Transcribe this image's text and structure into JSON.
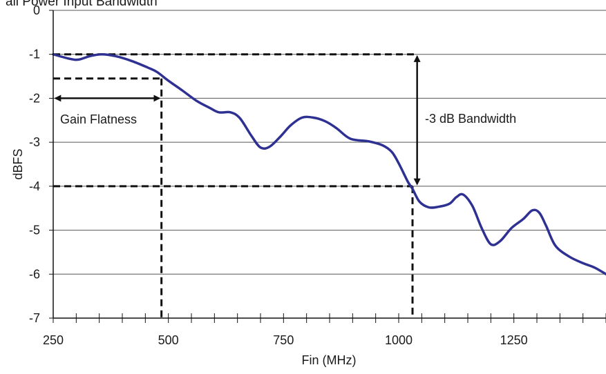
{
  "chart_data": {
    "type": "line",
    "title": "all Power Input Bandwidth",
    "xlabel": "Fin (MHz)",
    "ylabel": "dBFS",
    "xlim": [
      250,
      1450
    ],
    "ylim": [
      -7,
      0
    ],
    "x_ticks": [
      250,
      500,
      750,
      1000,
      1250
    ],
    "y_ticks": [
      0,
      -1,
      -2,
      -3,
      -4,
      -5,
      -6,
      -7
    ],
    "grid": "horizontal",
    "legend": "none",
    "series": [
      {
        "color": "#2e3192",
        "points": [
          [
            250,
            -1.0
          ],
          [
            285,
            -1.1
          ],
          [
            305,
            -1.12
          ],
          [
            330,
            -1.04
          ],
          [
            355,
            -1.0
          ],
          [
            385,
            -1.04
          ],
          [
            420,
            -1.15
          ],
          [
            455,
            -1.3
          ],
          [
            475,
            -1.4
          ],
          [
            500,
            -1.6
          ],
          [
            530,
            -1.82
          ],
          [
            560,
            -2.05
          ],
          [
            590,
            -2.22
          ],
          [
            610,
            -2.32
          ],
          [
            635,
            -2.32
          ],
          [
            655,
            -2.45
          ],
          [
            680,
            -2.85
          ],
          [
            700,
            -3.12
          ],
          [
            720,
            -3.1
          ],
          [
            745,
            -2.85
          ],
          [
            765,
            -2.62
          ],
          [
            790,
            -2.44
          ],
          [
            815,
            -2.44
          ],
          [
            840,
            -2.52
          ],
          [
            865,
            -2.68
          ],
          [
            895,
            -2.92
          ],
          [
            935,
            -2.98
          ],
          [
            965,
            -3.07
          ],
          [
            985,
            -3.22
          ],
          [
            1000,
            -3.48
          ],
          [
            1020,
            -3.9
          ],
          [
            1030,
            -4.06
          ],
          [
            1045,
            -4.35
          ],
          [
            1065,
            -4.48
          ],
          [
            1085,
            -4.47
          ],
          [
            1110,
            -4.4
          ],
          [
            1125,
            -4.25
          ],
          [
            1140,
            -4.19
          ],
          [
            1160,
            -4.45
          ],
          [
            1180,
            -4.95
          ],
          [
            1200,
            -5.32
          ],
          [
            1220,
            -5.25
          ],
          [
            1245,
            -4.95
          ],
          [
            1270,
            -4.75
          ],
          [
            1290,
            -4.55
          ],
          [
            1305,
            -4.6
          ],
          [
            1320,
            -4.9
          ],
          [
            1340,
            -5.35
          ],
          [
            1370,
            -5.6
          ],
          [
            1400,
            -5.75
          ],
          [
            1425,
            -5.85
          ],
          [
            1450,
            -6.0
          ]
        ]
      }
    ],
    "annotations": [
      {
        "text": "Gain Flatness"
      },
      {
        "text": "-3 dB Bandwidth"
      }
    ],
    "reference_lines": {
      "horizontal": [
        {
          "y": -1.0,
          "x_from": 250,
          "x_to": 1040
        },
        {
          "y": -1.55,
          "x_from": 250,
          "x_to": 485
        },
        {
          "y": -4.0,
          "x_from": 250,
          "x_to": 1030
        }
      ],
      "vertical": [
        {
          "x": 485,
          "y_from": -1.55,
          "y_to": -7.0
        },
        {
          "x": 1030,
          "y_from": -4.0,
          "y_to": -7.0
        }
      ]
    },
    "arrows": [
      {
        "from": [
          255,
          -2.0
        ],
        "to": [
          480,
          -2.0
        ]
      },
      {
        "from": [
          1040,
          -1.05
        ],
        "to": [
          1040,
          -3.95
        ]
      }
    ]
  }
}
